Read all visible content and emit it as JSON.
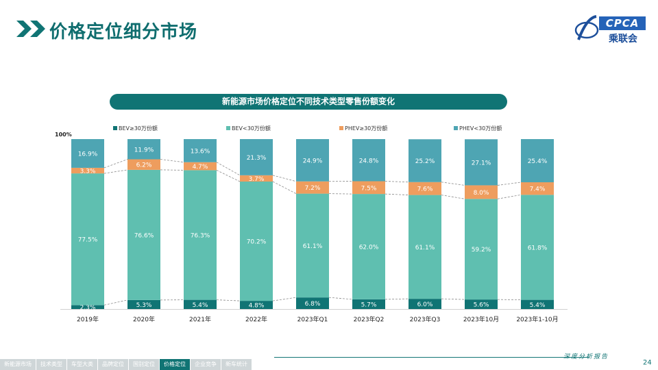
{
  "header": {
    "title": "价格定位细分市场",
    "logo_text": "CPCA",
    "logo_sub": "乘联会"
  },
  "chart_title": "新能源市场价格定位不同技术类型零售份额变化",
  "chart_data": {
    "type": "bar",
    "stacked": true,
    "title": "新能源市场价格定位不同技术类型零售份额变化",
    "categories": [
      "2019年",
      "2020年",
      "2021年",
      "2022年",
      "2023年Q1",
      "2023年Q2",
      "2023年Q3",
      "2023年10月",
      "2023年1-10月"
    ],
    "series": [
      {
        "name": "BEV≥30万份额",
        "color": "#107474",
        "values": [
          2.3,
          5.3,
          5.4,
          4.8,
          6.8,
          5.7,
          6.0,
          5.6,
          5.4
        ]
      },
      {
        "name": "BEV<30万份额",
        "color": "#5fbfb0",
        "values": [
          77.5,
          76.6,
          76.3,
          70.2,
          61.1,
          62.0,
          61.1,
          59.2,
          61.8
        ]
      },
      {
        "name": "PHEV≥30万份额",
        "color": "#ee9d5e",
        "values": [
          3.3,
          6.2,
          4.7,
          3.7,
          7.2,
          7.5,
          7.6,
          8.0,
          7.4
        ]
      },
      {
        "name": "PHEV<30万份额",
        "color": "#4ea5b3",
        "values": [
          16.9,
          11.9,
          13.6,
          21.3,
          24.9,
          24.8,
          25.2,
          27.1,
          25.4
        ]
      }
    ],
    "y_top_label": "100%",
    "ylim": [
      0,
      100
    ],
    "legend_position": "top",
    "connector_lines": "dashed"
  },
  "footer": {
    "nav": [
      "新能源市场",
      "技术类型",
      "车型大类",
      "品牌定位",
      "国别定位",
      "价格定位",
      "企业竞争",
      "新车统计"
    ],
    "active_index": 5,
    "tagline": "深度分析报告",
    "page_number": "24"
  }
}
